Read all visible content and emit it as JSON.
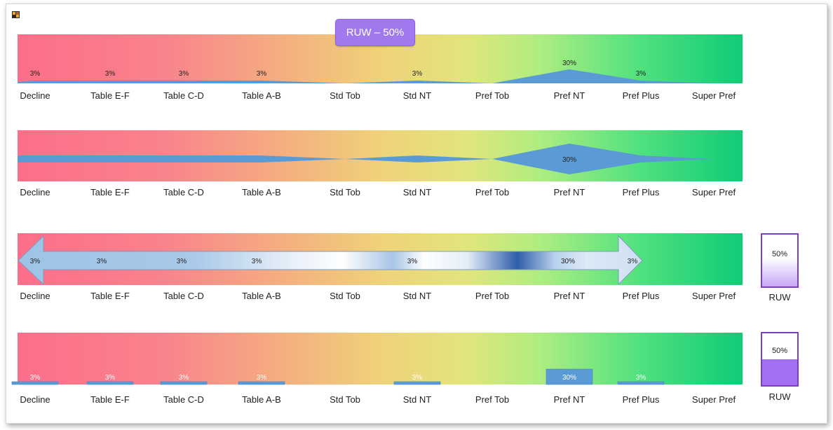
{
  "badge": {
    "label": "RUW – 50%"
  },
  "chart_data": {
    "type": "area",
    "categories": [
      "Decline",
      "Table E-F",
      "Table C-D",
      "Table A-B",
      "Std Tob",
      "Std NT",
      "Pref Tob",
      "Pref NT",
      "Pref Plus",
      "Super Pref"
    ],
    "label_texts": [
      "3%",
      "3%",
      "3%",
      "3%",
      "",
      "3%",
      "",
      "30%",
      "3%",
      ""
    ],
    "values": [
      3,
      3,
      3,
      3,
      0,
      3,
      0,
      30,
      3,
      0
    ],
    "gauge": {
      "value": 50,
      "value_label": "50%",
      "caption": "RUW"
    },
    "colors": {
      "shape": "#5b9bd5",
      "badge": "#a179ef",
      "gauge_border": "#7a3fc2",
      "gauge_fill": "#a26ff3"
    }
  }
}
